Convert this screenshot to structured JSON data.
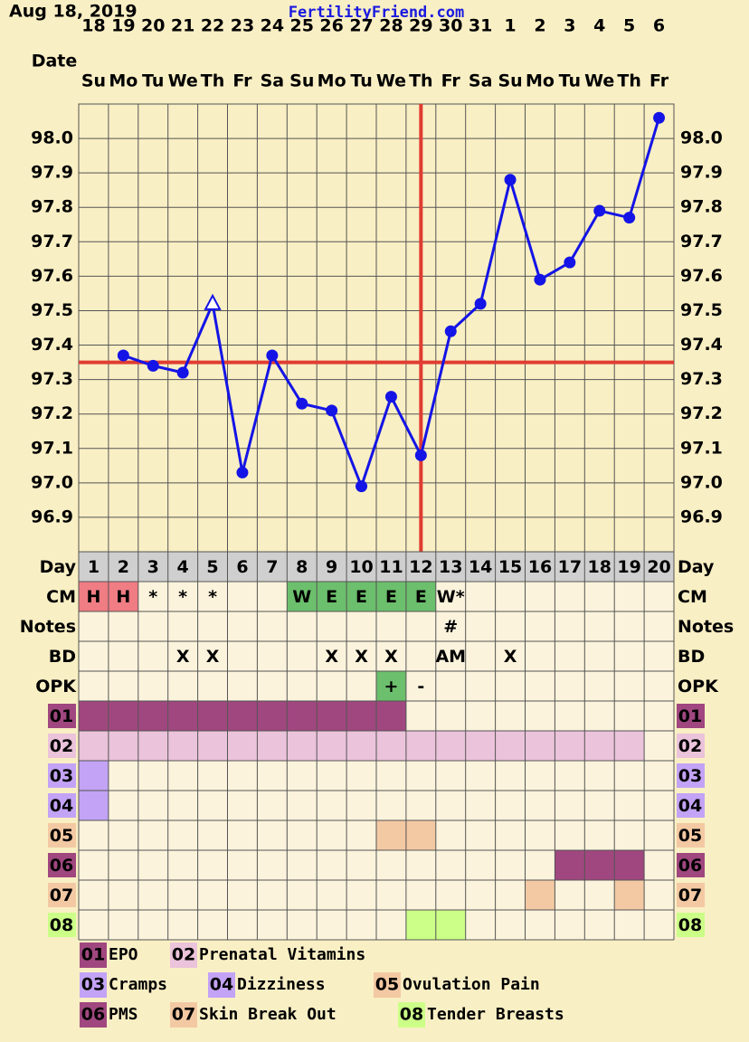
{
  "header": {
    "date": "Aug 18, 2019",
    "site": "FertilityFriend.com"
  },
  "chart_data": {
    "type": "line",
    "x_label": "Date",
    "categories": [
      "18",
      "19",
      "20",
      "21",
      "22",
      "23",
      "24",
      "25",
      "26",
      "27",
      "28",
      "29",
      "30",
      "31",
      "1",
      "2",
      "3",
      "4",
      "5",
      "6"
    ],
    "weekdays": [
      "Su",
      "Mo",
      "Tu",
      "We",
      "Th",
      "Fr",
      "Sa",
      "Su",
      "Mo",
      "Tu",
      "We",
      "Th",
      "Fr",
      "Sa",
      "Su",
      "Mo",
      "Tu",
      "We",
      "Th",
      "Fr"
    ],
    "values": [
      null,
      97.37,
      97.34,
      97.32,
      97.52,
      97.03,
      97.37,
      97.23,
      97.21,
      96.99,
      97.25,
      97.08,
      97.44,
      97.52,
      97.88,
      97.59,
      97.64,
      97.79,
      97.77,
      98.06
    ],
    "color": "#1414e6",
    "hollow_points": [
      4
    ],
    "coverline": 97.35,
    "coverline_color": "#e03c31",
    "ovulation_index": 11,
    "ylim": [
      96.8,
      98.1
    ],
    "yticks": [
      96.9,
      {
        "value": 97.0,
        "label": "97.0"
      },
      97.1,
      97.2,
      97.3,
      97.4,
      97.5,
      97.6,
      97.7,
      97.8,
      97.9,
      {
        "value": 98.0,
        "label": "98.0"
      }
    ],
    "grid": true
  },
  "table": {
    "row_labels": {
      "day": "Day",
      "cm": "CM",
      "notes": "Notes",
      "bd": "BD",
      "opk": "OPK"
    },
    "days": [
      1,
      2,
      3,
      4,
      5,
      6,
      7,
      8,
      9,
      10,
      11,
      12,
      13,
      14,
      15,
      16,
      17,
      18,
      19,
      20
    ],
    "cm": [
      "H",
      "H",
      "*",
      "*",
      "*",
      null,
      null,
      "W",
      "E",
      "E",
      "E",
      "E",
      "W*",
      null,
      null,
      null,
      null,
      null,
      null,
      null
    ],
    "cm_shading": {
      "H": "#f07c84",
      "W": "#6cbf6c",
      "E": "#6cbf6c"
    },
    "notes": [
      null,
      null,
      null,
      null,
      null,
      null,
      null,
      null,
      null,
      null,
      null,
      null,
      "#",
      null,
      null,
      null,
      null,
      null,
      null,
      null
    ],
    "bd": [
      null,
      null,
      null,
      "X",
      "X",
      null,
      null,
      null,
      "X",
      "X",
      "X",
      null,
      "AM",
      null,
      "X",
      null,
      null,
      null,
      null,
      null
    ],
    "opk": [
      null,
      null,
      null,
      null,
      null,
      null,
      null,
      null,
      null,
      null,
      "+",
      "-",
      null,
      null,
      null,
      null,
      null,
      null,
      null,
      null
    ],
    "opk_shading": {
      "+": "#6cbf6c"
    },
    "symptoms": [
      {
        "code": "01",
        "label": "EPO",
        "color": "#a0477f",
        "days": [
          1,
          2,
          3,
          4,
          5,
          6,
          7,
          8,
          9,
          10,
          11
        ]
      },
      {
        "code": "02",
        "label": "Prenatal Vitamins",
        "color": "#ebc3db",
        "days": [
          1,
          2,
          3,
          4,
          5,
          6,
          7,
          8,
          9,
          10,
          11,
          12,
          13,
          14,
          15,
          16,
          17,
          18,
          19
        ]
      },
      {
        "code": "03",
        "label": "Cramps",
        "color": "#c3a3f5",
        "days": [
          1
        ]
      },
      {
        "code": "04",
        "label": "Dizziness",
        "color": "#c3a3f5",
        "days": [
          1
        ]
      },
      {
        "code": "05",
        "label": "Ovulation Pain",
        "color": "#f3c9a3",
        "days": [
          11,
          12
        ]
      },
      {
        "code": "06",
        "label": "PMS",
        "color": "#a0477f",
        "days": [
          17,
          18,
          19
        ]
      },
      {
        "code": "07",
        "label": "Skin Break Out",
        "color": "#f3c9a3",
        "days": [
          16,
          19
        ]
      },
      {
        "code": "08",
        "label": "Tender Breasts",
        "color": "#ccff88",
        "days": [
          12,
          13
        ]
      }
    ]
  }
}
